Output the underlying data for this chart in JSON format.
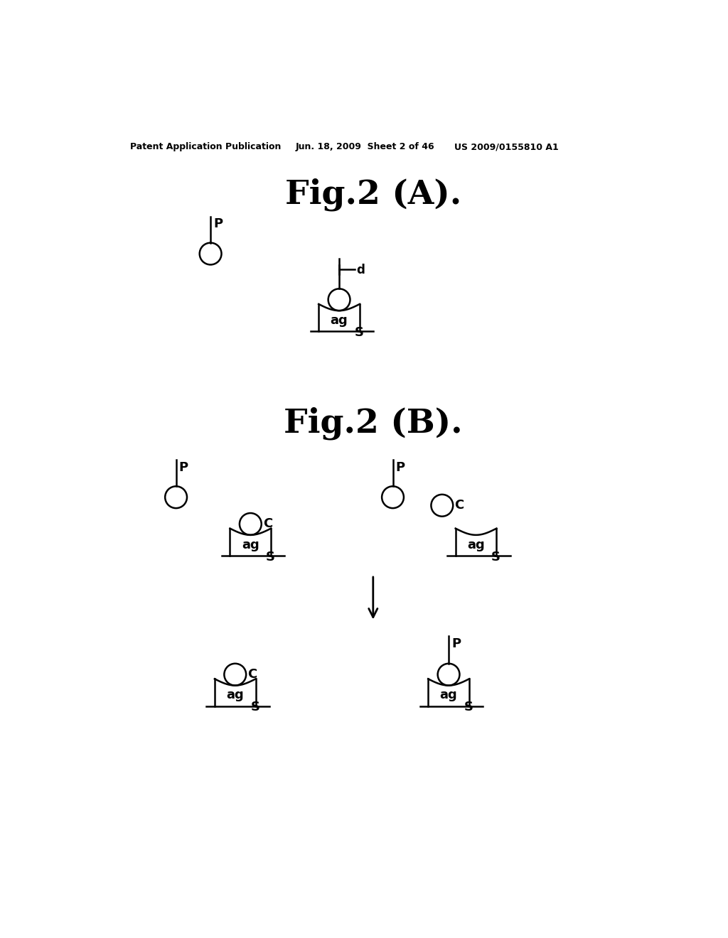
{
  "bg_color": "#ffffff",
  "header_left": "Patent Application Publication",
  "header_mid": "Jun. 18, 2009  Sheet 2 of 46",
  "header_right": "US 2009/0155810 A1",
  "fig2A_title": "Fig.2 (A).",
  "fig2B_title": "Fig.2 (B).",
  "line_color": "#000000",
  "text_color": "#000000"
}
